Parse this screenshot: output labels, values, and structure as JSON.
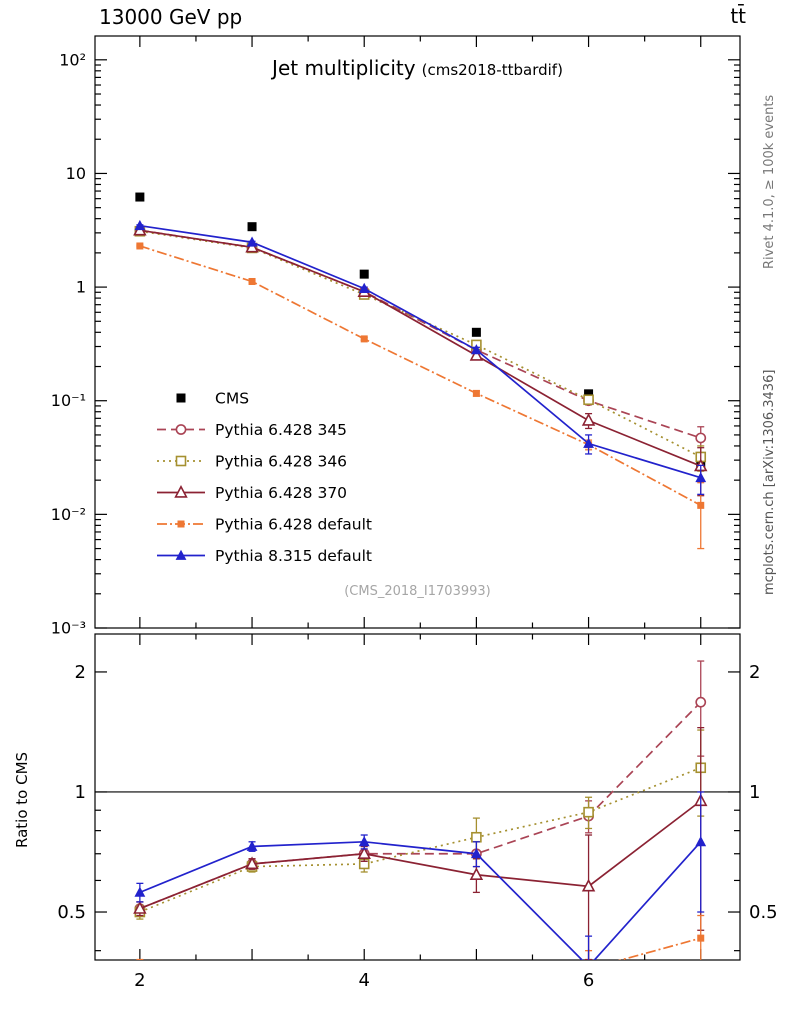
{
  "header": {
    "left": "13000 GeV pp",
    "right": "tt̄"
  },
  "plot": {
    "title": "Jet multiplicity",
    "subtitle": "(cms2018-ttbardif)",
    "watermark": "(CMS_2018_I1703993)",
    "side_text_top": "Rivet 4.1.0, ≥ 100k events",
    "side_text_bottom": "mcplots.cern.ch [arXiv:1306.3436]",
    "ratio_ylabel": "Ratio to CMS"
  },
  "chart_data": {
    "type": "line",
    "title": "Jet multiplicity (cms2018-ttbardif)",
    "x": [
      2,
      3,
      4,
      5,
      6,
      7
    ],
    "xlim": [
      1.6,
      7.35
    ],
    "xtick_labels": [
      2,
      4,
      6
    ],
    "main_panel": {
      "yscale": "log",
      "ymin": 0.001,
      "ymax": 162,
      "yticks": [
        {
          "v": 100,
          "label": "10²"
        },
        {
          "v": 10,
          "label": "10"
        },
        {
          "v": 1,
          "label": "1"
        },
        {
          "v": 0.1,
          "label": "10⁻¹"
        },
        {
          "v": 0.01,
          "label": "10⁻²"
        },
        {
          "v": 0.001,
          "label": "10⁻³"
        }
      ]
    },
    "ratio_panel": {
      "yscale": "log",
      "ymin": 0.379,
      "ymax": 2.49,
      "yticks": [
        {
          "v": 2,
          "label": "2"
        },
        {
          "v": 1,
          "label": "1"
        },
        {
          "v": 0.5,
          "label": "0.5"
        }
      ],
      "yminors": [
        0.4,
        0.6,
        0.7,
        0.8,
        0.9
      ],
      "reference_line": 1
    },
    "series": [
      {
        "name": "CMS",
        "color": "#000000",
        "marker": "square-filled",
        "line": "none",
        "values": [
          6.2,
          3.4,
          1.3,
          0.4,
          0.115,
          0.028
        ],
        "yerr": [
          0.15,
          0.1,
          0.04,
          0.015,
          0.006,
          0.003
        ],
        "ratio": null,
        "ratio_err": null
      },
      {
        "name": "Pythia 6.428 345",
        "color": "#aa4455",
        "marker": "circle-open",
        "line": "dashed",
        "values": [
          3.16,
          2.24,
          0.91,
          0.28,
          0.1,
          0.047
        ],
        "yerr": [
          0.05,
          0.04,
          0.02,
          0.012,
          0.008,
          0.012
        ],
        "ratio": [
          0.51,
          0.66,
          0.7,
          0.7,
          0.87,
          1.68
        ],
        "ratio_err": [
          0.02,
          0.02,
          0.03,
          0.05,
          0.08,
          0.45
        ]
      },
      {
        "name": "Pythia 6.428 346",
        "color": "#a59030",
        "marker": "square-open",
        "line": "dotted",
        "values": [
          3.1,
          2.21,
          0.86,
          0.31,
          0.102,
          0.032
        ],
        "yerr": [
          0.05,
          0.04,
          0.02,
          0.015,
          0.008,
          0.008
        ],
        "ratio": [
          0.5,
          0.65,
          0.66,
          0.77,
          0.89,
          1.15
        ],
        "ratio_err": [
          0.02,
          0.02,
          0.03,
          0.09,
          0.08,
          0.28
        ]
      },
      {
        "name": "Pythia 6.428 370",
        "color": "#8b2233",
        "marker": "triangle-open",
        "line": "solid",
        "values": [
          3.16,
          2.24,
          0.91,
          0.25,
          0.067,
          0.0266
        ],
        "yerr": [
          0.05,
          0.04,
          0.02,
          0.012,
          0.01,
          0.012
        ],
        "ratio": [
          0.51,
          0.66,
          0.7,
          0.62,
          0.58,
          0.95
        ],
        "ratio_err": [
          0.02,
          0.02,
          0.03,
          0.06,
          0.2,
          0.5
        ]
      },
      {
        "name": "Pythia 6.428 default",
        "color": "#ee7733",
        "marker": "square-filled-small",
        "line": "dashdot",
        "values": [
          2.3,
          1.12,
          0.35,
          0.116,
          0.041,
          0.012
        ],
        "yerr": [
          0.04,
          0.02,
          0.01,
          0.006,
          0.004,
          0.007
        ],
        "ratio": [
          0.37,
          0.33,
          0.27,
          0.29,
          0.36,
          0.43
        ],
        "ratio_err": [
          0.01,
          0.01,
          0.01,
          0.02,
          0.04,
          0.06
        ]
      },
      {
        "name": "Pythia 8.315 default",
        "color": "#2222cc",
        "marker": "triangle-filled",
        "line": "solid",
        "values": [
          3.47,
          2.48,
          0.97,
          0.28,
          0.042,
          0.021
        ],
        "yerr": [
          0.06,
          0.05,
          0.03,
          0.015,
          0.008,
          0.006
        ],
        "ratio": [
          0.56,
          0.73,
          0.75,
          0.7,
          0.365,
          0.75
        ],
        "ratio_err": [
          0.03,
          0.02,
          0.03,
          0.05,
          0.07,
          0.25
        ]
      }
    ]
  }
}
